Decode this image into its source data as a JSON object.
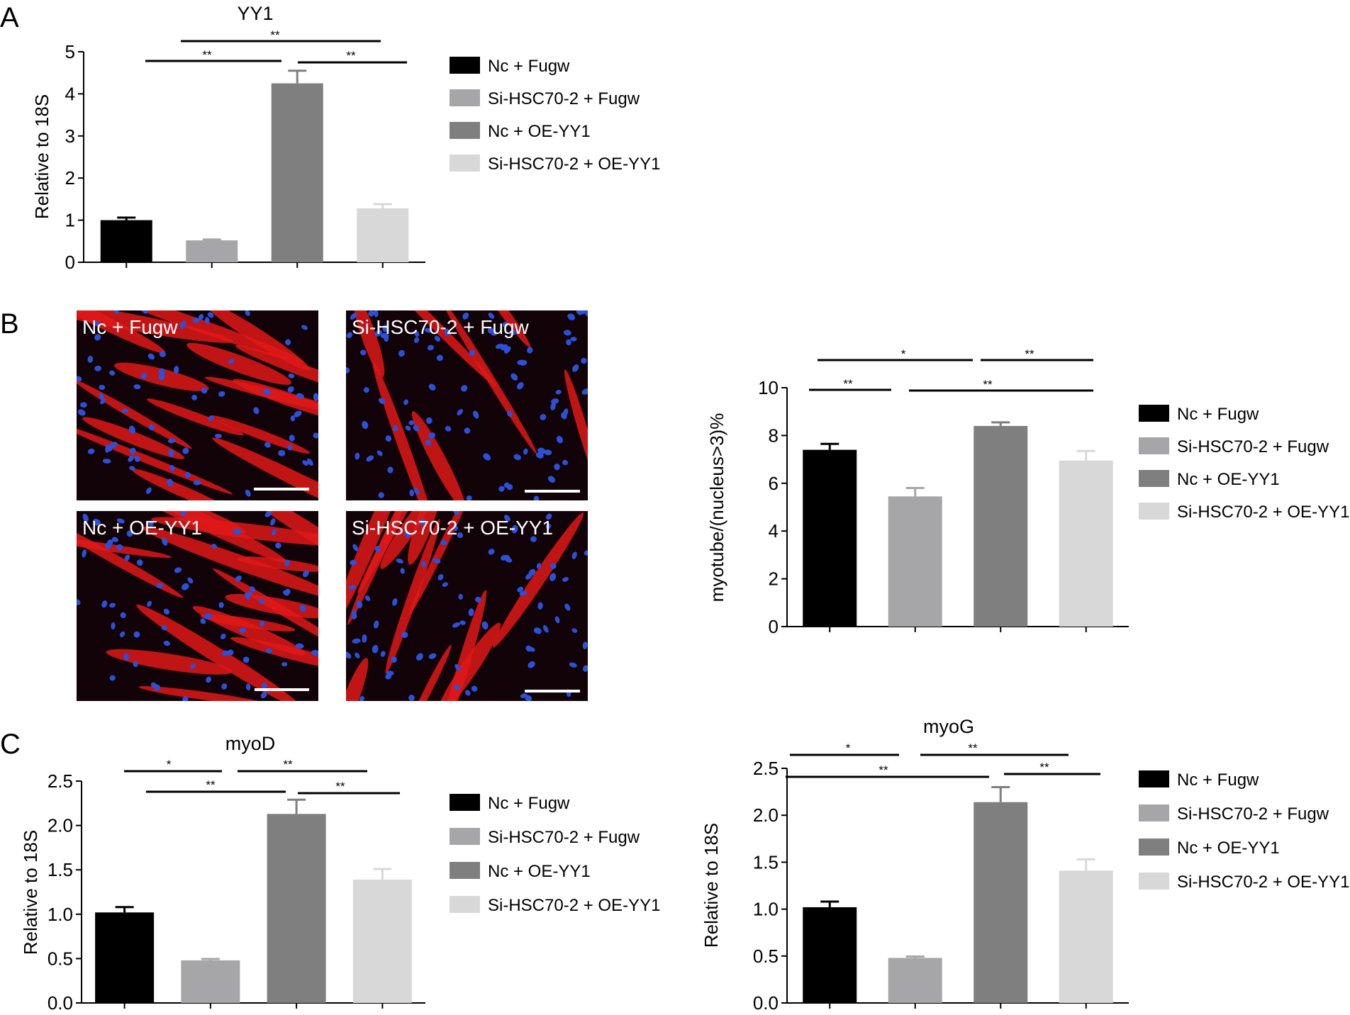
{
  "panel_labels": {
    "a": "A",
    "b": "B",
    "c": "C"
  },
  "legend_entries": [
    "Nc + Fugw",
    "Si-HSC70-2 + Fugw",
    "Nc + OE-YY1",
    "Si-HSC70-2 + OE-YY1"
  ],
  "bar_colors": [
    "#000000",
    "#a6a6a8",
    "#7f7f7f",
    "#d8d8d8"
  ],
  "micrograph_colors": {
    "background": "#120308",
    "myotube": "#e01818",
    "nucleus": "#2c50d8"
  },
  "micrographs": [
    {
      "caption": "Nc + Fugw",
      "myotube_density": "high"
    },
    {
      "caption": "Si-HSC70-2 + Fugw",
      "myotube_density": "low"
    },
    {
      "caption": "Nc + OE-YY1",
      "myotube_density": "high"
    },
    {
      "caption": "Si-HSC70-2 + OE-YY1",
      "myotube_density": "medium"
    }
  ],
  "chart_data": [
    {
      "id": "yy1",
      "type": "bar",
      "title": "YY1",
      "ylabel": "Relative to 18S",
      "xlabel": "",
      "ylim": [
        0,
        5
      ],
      "yticks": [
        "0",
        "1",
        "2",
        "3",
        "4",
        "5"
      ],
      "categories": [
        "Nc + Fugw",
        "Si-HSC70-2 + Fugw",
        "Nc + OE-YY1",
        "Si-HSC70-2 + OE-YY1"
      ],
      "values": [
        1.0,
        0.52,
        4.25,
        1.28
      ],
      "errors": [
        0.06,
        0.02,
        0.3,
        0.1
      ],
      "grid": false,
      "legend": "right",
      "significance": [
        {
          "from": 0,
          "to": 3,
          "label": "**"
        },
        {
          "from": 1,
          "to": 2,
          "label": "**"
        },
        {
          "from": 2,
          "to": 3,
          "label": "**"
        }
      ]
    },
    {
      "id": "myotube",
      "type": "bar",
      "title": "",
      "ylabel": "myotube/(nucleus>3)%",
      "xlabel": "",
      "ylim": [
        0,
        10
      ],
      "yticks": [
        "0",
        "2",
        "4",
        "6",
        "8",
        "10"
      ],
      "categories": [
        "Nc + Fugw",
        "Si-HSC70-2 + Fugw",
        "Nc + OE-YY1",
        "Si-HSC70-2 + OE-YY1"
      ],
      "values": [
        7.4,
        5.45,
        8.4,
        6.95
      ],
      "errors": [
        0.25,
        0.35,
        0.15,
        0.4
      ],
      "grid": false,
      "legend": "right",
      "significance": [
        {
          "from": 0,
          "to": 2,
          "label": "*"
        },
        {
          "from": 2,
          "to": 3,
          "label": "**"
        },
        {
          "from": 0,
          "to": 1,
          "label": "**"
        },
        {
          "from": 1,
          "to": 3,
          "label": "**"
        }
      ]
    },
    {
      "id": "myod",
      "type": "bar",
      "title": "myoD",
      "ylabel": "Relative to 18S",
      "xlabel": "",
      "ylim": [
        0,
        2.5
      ],
      "yticks": [
        "0.0",
        "0.5",
        "1.0",
        "1.5",
        "2.0",
        "2.5"
      ],
      "categories": [
        "Nc + Fugw",
        "Si-HSC70-2 + Fugw",
        "Nc + OE-YY1",
        "Si-HSC70-2 + OE-YY1"
      ],
      "values": [
        1.02,
        0.48,
        2.13,
        1.39
      ],
      "errors": [
        0.06,
        0.015,
        0.16,
        0.12
      ],
      "grid": false,
      "legend": "right",
      "significance": [
        {
          "from": 0,
          "to": 1,
          "label": "*"
        },
        {
          "from": 1,
          "to": 3,
          "label": "**"
        },
        {
          "from": 0,
          "to": 2,
          "label": "**"
        },
        {
          "from": 2,
          "to": 3,
          "label": "**"
        }
      ]
    },
    {
      "id": "myog",
      "type": "bar",
      "title": "myoG",
      "ylabel": "Relative to 18S",
      "xlabel": "",
      "ylim": [
        0,
        2.5
      ],
      "yticks": [
        "0.0",
        "0.5",
        "1.0",
        "1.5",
        "2.0",
        "2.5"
      ],
      "categories": [
        "Nc + Fugw",
        "Si-HSC70-2 + Fugw",
        "Nc + OE-YY1",
        "Si-HSC70-2 + OE-YY1"
      ],
      "values": [
        1.02,
        0.48,
        2.14,
        1.41
      ],
      "errors": [
        0.06,
        0.015,
        0.16,
        0.12
      ],
      "grid": false,
      "legend": "right",
      "significance": [
        {
          "from": 0,
          "to": 1,
          "label": "*"
        },
        {
          "from": 1,
          "to": 3,
          "label": "**"
        },
        {
          "from": 0,
          "to": 2,
          "label": "**"
        },
        {
          "from": 2,
          "to": 3,
          "label": "**"
        }
      ]
    }
  ]
}
